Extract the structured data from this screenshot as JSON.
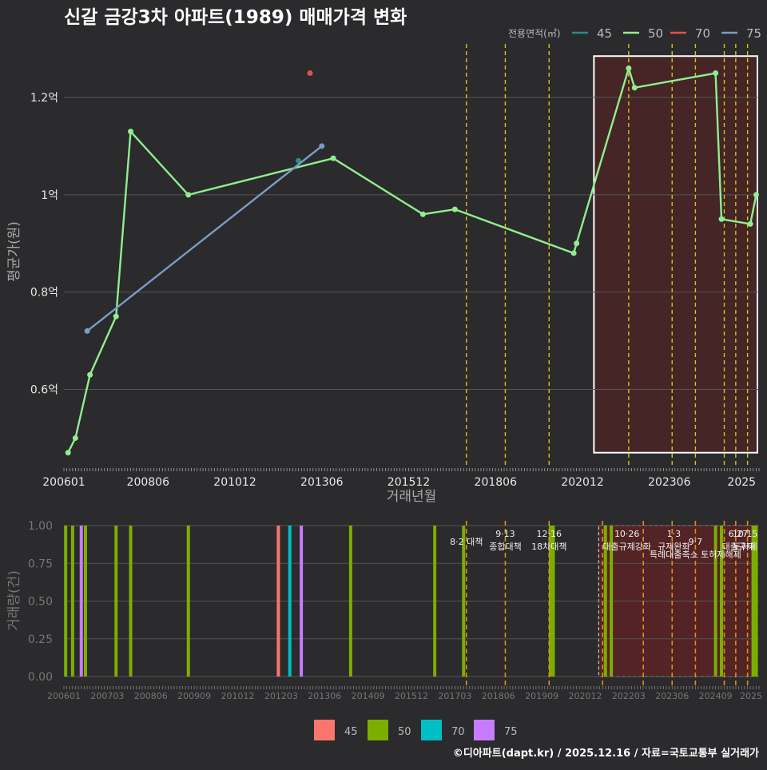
{
  "title": "신갈 금강3차 아파트(1989) 매매가격 변화",
  "footer": "©디아파트(dapt.kr) / 2025.12.16 / 자료=국토교통부 실거래가",
  "colors": {
    "background": "#2b2a2c",
    "grid": "#555555",
    "s45": "#2a8c8c",
    "s50": "#90ee90",
    "s70": "#e0524f",
    "s75": "#7a9cc6",
    "b45": "#f8766d",
    "b50": "#7cae00",
    "b70": "#00bfc4",
    "b75": "#c77cff",
    "policy_yellow": "#d8c21a",
    "policy_orange": "#e08f1a",
    "highlight_fill": "#4a2426",
    "highlight_bottom": "#5a2224"
  },
  "chart_data": [
    {
      "type": "line",
      "title": "신갈 금강3차 아파트(1989) 매매가격 변화",
      "xlabel": "거래년월",
      "ylabel": "평균가(원)",
      "legend_title": "전용면적(㎡)",
      "legend": [
        "45",
        "50",
        "70",
        "75"
      ],
      "x_ticks": [
        "200601",
        "200806",
        "201012",
        "201306",
        "201512",
        "201806",
        "202012",
        "202306",
        "2025"
      ],
      "y_ticks": [
        {
          "v": 0.6,
          "label": "0.6억"
        },
        {
          "v": 0.8,
          "label": "0.8억"
        },
        {
          "v": 1.0,
          "label": "1억"
        },
        {
          "v": 1.2,
          "label": "1.2억"
        }
      ],
      "x_range": [
        2006.0,
        2026.0
      ],
      "ylim": [
        0.44,
        1.31
      ],
      "series": [
        {
          "name": "45",
          "points": [
            [
              2012.75,
              1.07
            ]
          ]
        },
        {
          "name": "50",
          "points": [
            [
              2006.12,
              0.47
            ],
            [
              2006.33,
              0.5
            ],
            [
              2006.75,
              0.63
            ],
            [
              2007.5,
              0.75
            ],
            [
              2007.92,
              1.13
            ],
            [
              2009.58,
              1.0
            ],
            [
              2013.75,
              1.075
            ],
            [
              2016.33,
              0.96
            ],
            [
              2017.25,
              0.97
            ],
            [
              2020.67,
              0.88
            ],
            [
              2020.75,
              0.9
            ],
            [
              2022.25,
              1.26
            ],
            [
              2022.42,
              1.22
            ],
            [
              2024.75,
              1.25
            ],
            [
              2024.92,
              0.95
            ],
            [
              2025.75,
              0.94
            ],
            [
              2025.92,
              1.0
            ]
          ]
        },
        {
          "name": "70",
          "points": [
            [
              2013.08,
              1.25
            ]
          ]
        },
        {
          "name": "75",
          "points": [
            [
              2006.67,
              0.72
            ],
            [
              2013.42,
              1.1
            ]
          ]
        }
      ],
      "policy_lines": [
        2017.58,
        2018.7,
        2019.96,
        2022.25,
        2023.5,
        2024.17,
        2025.0,
        2025.33,
        2025.67
      ],
      "highlight_range": [
        2021.25,
        2026.0
      ]
    },
    {
      "type": "bar",
      "ylabel": "거래량(건)",
      "x_ticks": [
        "200601",
        "200703",
        "200806",
        "200909",
        "201012",
        "201203",
        "201306",
        "201409",
        "201512",
        "201703",
        "201806",
        "201909",
        "202012",
        "202203",
        "202306",
        "202409",
        "2025"
      ],
      "y_ticks": [
        "0.00",
        "0.25",
        "0.50",
        "0.75",
        "1.00"
      ],
      "ylim": [
        0,
        1
      ],
      "legend": [
        "45",
        "50",
        "70",
        "75"
      ],
      "bars": [
        {
          "x": 2006.05,
          "value": 1,
          "series": "50"
        },
        {
          "x": 2006.25,
          "value": 1,
          "series": "50"
        },
        {
          "x": 2006.5,
          "value": 1,
          "series": "75"
        },
        {
          "x": 2006.62,
          "value": 1,
          "series": "50"
        },
        {
          "x": 2007.5,
          "value": 1,
          "series": "50"
        },
        {
          "x": 2007.92,
          "value": 1,
          "series": "50"
        },
        {
          "x": 2009.58,
          "value": 1,
          "series": "50"
        },
        {
          "x": 2012.17,
          "value": 1,
          "series": "45"
        },
        {
          "x": 2012.5,
          "value": 1,
          "series": "70"
        },
        {
          "x": 2012.83,
          "value": 1,
          "series": "75"
        },
        {
          "x": 2014.25,
          "value": 1,
          "series": "50"
        },
        {
          "x": 2016.67,
          "value": 1,
          "series": "50"
        },
        {
          "x": 2017.5,
          "value": 1,
          "series": "50"
        },
        {
          "x": 2020.0,
          "value": 1,
          "series": "50"
        },
        {
          "x": 2020.08,
          "value": 1,
          "series": "50"
        },
        {
          "x": 2021.58,
          "value": 1,
          "series": "50"
        },
        {
          "x": 2021.75,
          "value": 1,
          "series": "50"
        },
        {
          "x": 2024.75,
          "value": 1,
          "series": "50"
        },
        {
          "x": 2024.92,
          "value": 1,
          "series": "50"
        },
        {
          "x": 2025.83,
          "value": 1,
          "series": "50"
        },
        {
          "x": 2025.92,
          "value": 1,
          "series": "50"
        }
      ],
      "policy_lines": [
        2017.58,
        2018.7,
        2019.96,
        2021.5,
        2022.67,
        2023.5,
        2024.17,
        2025.0,
        2025.33,
        2025.67
      ],
      "highlight_range": [
        2021.25,
        2026.0
      ],
      "annotations": [
        {
          "x": 2017.58,
          "lines": [
            "8·2 대책"
          ],
          "row": 1
        },
        {
          "x": 2018.7,
          "lines": [
            "9·13",
            "종합대책"
          ],
          "row": 0
        },
        {
          "x": 2019.96,
          "lines": [
            "12·16",
            "18차대책"
          ],
          "row": 0
        },
        {
          "x": 2022.2,
          "lines": [
            "10·26",
            "대출규제강화"
          ],
          "row": 0
        },
        {
          "x": 2023.55,
          "lines": [
            "1·3",
            "규제완화"
          ],
          "row": 0
        },
        {
          "x": 2024.17,
          "lines": [
            "9·7",
            "특례대출축소 토허제해제"
          ],
          "row": 1
        },
        {
          "x": 2025.4,
          "lines": [
            "6·27",
            "대출규제"
          ],
          "row": 0
        },
        {
          "x": 2025.6,
          "lines": [
            "10·15",
            "토허제"
          ],
          "row": 0
        }
      ]
    }
  ]
}
